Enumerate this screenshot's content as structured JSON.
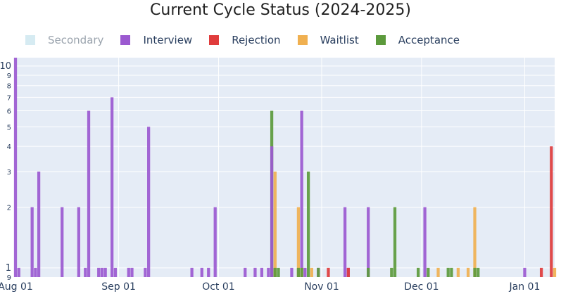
{
  "title": "Current Cycle Status (2024-2025)",
  "legend": [
    {
      "name": "Secondary",
      "color": "#add8e6",
      "disabled": true
    },
    {
      "name": "Interview",
      "color": "#9b59d0",
      "disabled": false
    },
    {
      "name": "Rejection",
      "color": "#e03c3c",
      "disabled": false
    },
    {
      "name": "Waitlist",
      "color": "#f0b050",
      "disabled": false
    },
    {
      "name": "Acceptance",
      "color": "#5c9a3c",
      "disabled": false
    }
  ],
  "chart_data": {
    "type": "bar",
    "x_type": "date",
    "y_scale": "log",
    "barmode": "overlay",
    "xlim": [
      "2024-08-01",
      "2025-01-10"
    ],
    "ylim": [
      0.9,
      11
    ],
    "x_tick_labels": [
      "Aug 01",
      "Sep 01",
      "Oct 01",
      "Nov 01",
      "Dec 01",
      "Jan 01"
    ],
    "x_ticks": [
      "2024-08-01",
      "2024-09-01",
      "2024-10-01",
      "2024-11-01",
      "2024-12-01",
      "2025-01-01"
    ],
    "y_ticks": [
      1,
      2,
      3,
      4,
      5,
      6,
      7,
      8,
      9,
      10
    ],
    "y_tick_labels": [
      "1",
      "2",
      "3",
      "4",
      "5",
      "6",
      "7",
      "8",
      "9",
      "10"
    ],
    "grid": true,
    "legend_position": "top",
    "series": [
      {
        "name": "Interview",
        "color": "#9b59d0",
        "points": [
          [
            "2024-08-01",
            11
          ],
          [
            "2024-08-02",
            1
          ],
          [
            "2024-08-06",
            2
          ],
          [
            "2024-08-07",
            1
          ],
          [
            "2024-08-08",
            3
          ],
          [
            "2024-08-15",
            2
          ],
          [
            "2024-08-20",
            2
          ],
          [
            "2024-08-22",
            1
          ],
          [
            "2024-08-23",
            6
          ],
          [
            "2024-08-26",
            1
          ],
          [
            "2024-08-27",
            1
          ],
          [
            "2024-08-28",
            1
          ],
          [
            "2024-08-30",
            7
          ],
          [
            "2024-08-31",
            1
          ],
          [
            "2024-09-04",
            1
          ],
          [
            "2024-09-05",
            1
          ],
          [
            "2024-09-09",
            1
          ],
          [
            "2024-09-10",
            5
          ],
          [
            "2024-09-23",
            1
          ],
          [
            "2024-09-26",
            1
          ],
          [
            "2024-09-28",
            1
          ],
          [
            "2024-09-30",
            2
          ],
          [
            "2024-10-09",
            1
          ],
          [
            "2024-10-12",
            1
          ],
          [
            "2024-10-14",
            1
          ],
          [
            "2024-10-16",
            1
          ],
          [
            "2024-10-17",
            1
          ],
          [
            "2024-10-23",
            1
          ],
          [
            "2024-10-26",
            6
          ],
          [
            "2024-10-27",
            1
          ],
          [
            "2024-10-31",
            1
          ],
          [
            "2024-11-08",
            2
          ],
          [
            "2024-11-09",
            1
          ],
          [
            "2024-11-15",
            2
          ],
          [
            "2024-12-02",
            2
          ],
          [
            "2025-01-01",
            1
          ]
        ]
      },
      {
        "name": "Rejection",
        "color": "#e03c3c",
        "points": [
          [
            "2024-11-03",
            1
          ],
          [
            "2024-11-09",
            1
          ],
          [
            "2025-01-06",
            1
          ],
          [
            "2025-01-09",
            4
          ]
        ]
      },
      {
        "name": "Waitlist",
        "color": "#f0b050",
        "points": [
          [
            "2024-10-18",
            3
          ],
          [
            "2024-10-25",
            2
          ],
          [
            "2024-10-26",
            1
          ],
          [
            "2024-10-29",
            1
          ],
          [
            "2024-12-06",
            1
          ],
          [
            "2024-12-12",
            1
          ],
          [
            "2024-12-15",
            1
          ],
          [
            "2024-12-17",
            2
          ],
          [
            "2025-01-10",
            1
          ]
        ]
      },
      {
        "name": "Acceptance",
        "color": "#5c9a3c",
        "points": [
          [
            "2024-10-17",
            6
          ],
          [
            "2024-10-18",
            1
          ],
          [
            "2024-10-19",
            1
          ],
          [
            "2024-10-25",
            1
          ],
          [
            "2024-10-26",
            1
          ],
          [
            "2024-10-28",
            3
          ],
          [
            "2024-10-31",
            1
          ],
          [
            "2024-11-15",
            1
          ],
          [
            "2024-11-22",
            1
          ],
          [
            "2024-11-23",
            2
          ],
          [
            "2024-11-30",
            1
          ],
          [
            "2024-12-03",
            1
          ],
          [
            "2024-12-09",
            1
          ],
          [
            "2024-12-10",
            1
          ],
          [
            "2024-12-17",
            1
          ],
          [
            "2024-12-18",
            1
          ]
        ]
      },
      {
        "name": "Interview",
        "color": "#9b59d0",
        "points": [
          [
            "2024-10-17",
            4
          ]
        ]
      }
    ]
  }
}
